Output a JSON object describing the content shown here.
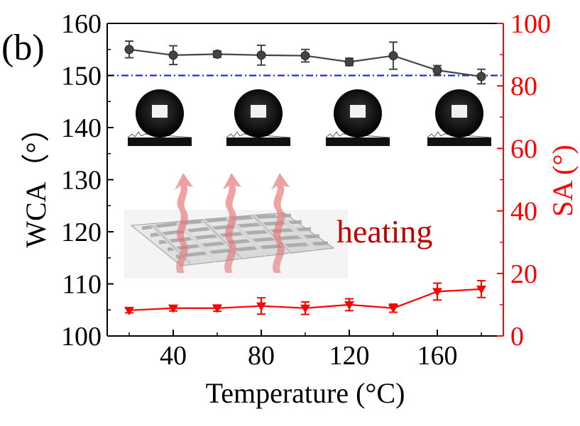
{
  "panel_label": "(b)",
  "chart_data": {
    "type": "line",
    "title": "",
    "xlabel": "Temperature (°C)",
    "ylabel_left": "WCA（°）",
    "ylabel_right": "SA (°)",
    "xlim": [
      10,
      190
    ],
    "ylim_left": [
      100,
      160
    ],
    "ylim_right": [
      0,
      100
    ],
    "x_ticks": [
      40,
      80,
      120,
      160
    ],
    "y_ticks_left": [
      100,
      110,
      120,
      130,
      140,
      150,
      160
    ],
    "y_ticks_right": [
      0,
      20,
      40,
      60,
      80,
      100
    ],
    "reference_line": {
      "axis": "left",
      "value": 150,
      "style": "dash-dot",
      "color": "#1f2fd6"
    },
    "series": [
      {
        "axis": "left",
        "marker": "circle",
        "color": "#444444",
        "x": [
          20,
          40,
          60,
          80,
          100,
          120,
          140,
          160,
          180
        ],
        "y": [
          155.0,
          153.9,
          154.1,
          153.9,
          153.8,
          152.6,
          153.8,
          151.0,
          149.8
        ],
        "err": [
          1.6,
          1.8,
          0.6,
          1.9,
          1.2,
          0.7,
          2.6,
          0.9,
          1.4
        ]
      },
      {
        "axis": "right",
        "marker": "triangle-down",
        "color": "#ff0000",
        "x": [
          20,
          40,
          60,
          80,
          100,
          120,
          140,
          160,
          180
        ],
        "y": [
          8.2,
          8.9,
          8.9,
          9.6,
          8.9,
          10.0,
          8.9,
          14.2,
          15.0
        ],
        "err": [
          0.8,
          0.9,
          1.0,
          2.6,
          2.0,
          1.9,
          1.3,
          2.7,
          2.7
        ]
      }
    ],
    "annotations": [
      "heating"
    ]
  },
  "insets": {
    "droplet_photos": 4,
    "fabric_illustration": true
  }
}
